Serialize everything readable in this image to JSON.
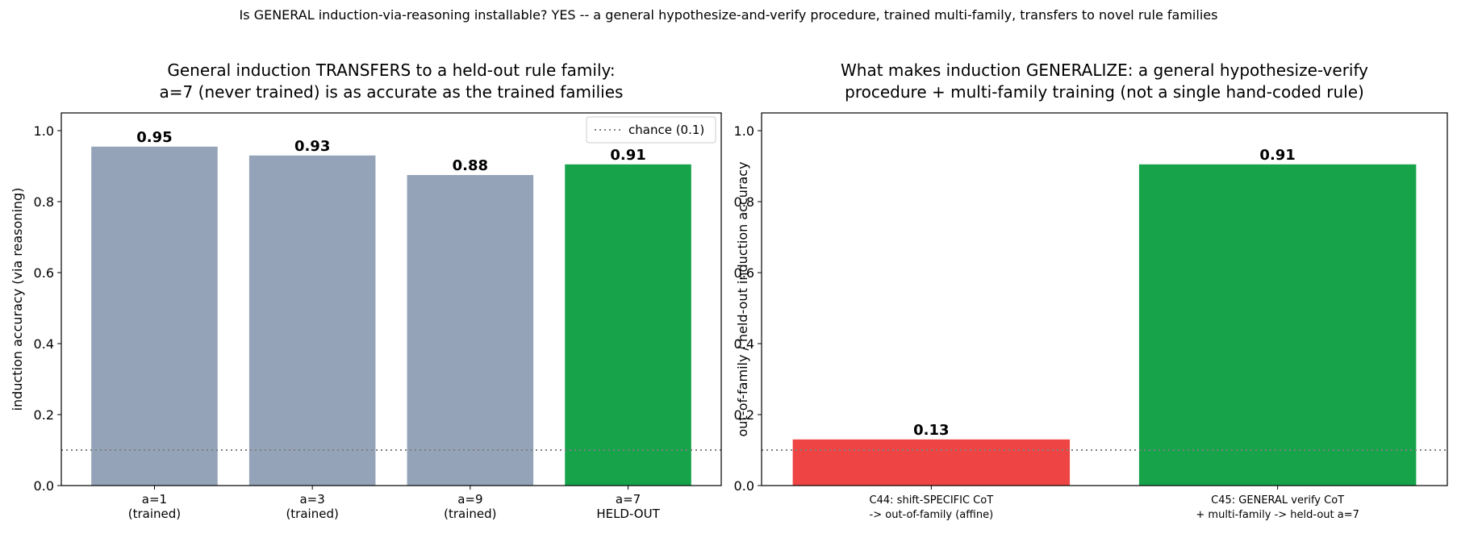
{
  "suptitle": "Is GENERAL induction-via-reasoning installable? YES -- a general hypothesize-and-verify procedure, trained multi-family, transfers to novel rule families",
  "colors": {
    "trained": "#94a3b8",
    "heldout": "#16a34a",
    "specific": "#ef4444",
    "chance": "#808080"
  },
  "chart_data": [
    {
      "type": "bar",
      "title": [
        "General induction TRANSFERS to a held-out rule family:",
        "a=7 (never trained) is as accurate as the trained families"
      ],
      "ylabel": "induction accuracy (via reasoning)",
      "xlabel": "",
      "ylim": [
        0,
        1.05
      ],
      "yticks": [
        "0.0",
        "0.2",
        "0.4",
        "0.6",
        "0.8",
        "1.0"
      ],
      "categories": [
        [
          "a=1",
          "(trained)"
        ],
        [
          "a=3",
          "(trained)"
        ],
        [
          "a=9",
          "(trained)"
        ],
        [
          "a=7",
          "HELD-OUT"
        ]
      ],
      "values": [
        0.955,
        0.93,
        0.875,
        0.905
      ],
      "value_labels": [
        "0.95",
        "0.93",
        "0.88",
        "0.91"
      ],
      "bar_colors": [
        "#94a3b8",
        "#94a3b8",
        "#94a3b8",
        "#16a34a"
      ],
      "reference_line": {
        "y": 0.1,
        "style": "dotted",
        "label": "chance (0.1)"
      },
      "legend": {
        "position": "top-right",
        "entries": [
          "chance (0.1)"
        ]
      },
      "grid": false
    },
    {
      "type": "bar",
      "title": [
        "What makes induction GENERALIZE: a general hypothesize-verify",
        "procedure + multi-family training (not a single hand-coded rule)"
      ],
      "ylabel": "out-of-family / held-out induction accuracy",
      "xlabel": "",
      "ylim": [
        0,
        1.05
      ],
      "yticks": [
        "0.0",
        "0.2",
        "0.4",
        "0.6",
        "0.8",
        "1.0"
      ],
      "categories": [
        [
          "C44: shift-SPECIFIC CoT",
          "-> out-of-family (affine)"
        ],
        [
          "C45: GENERAL verify CoT",
          "+ multi-family -> held-out a=7"
        ]
      ],
      "values": [
        0.13,
        0.905
      ],
      "value_labels": [
        "0.13",
        "0.91"
      ],
      "bar_colors": [
        "#ef4444",
        "#16a34a"
      ],
      "reference_line": {
        "y": 0.1,
        "style": "dotted"
      },
      "grid": false
    }
  ]
}
